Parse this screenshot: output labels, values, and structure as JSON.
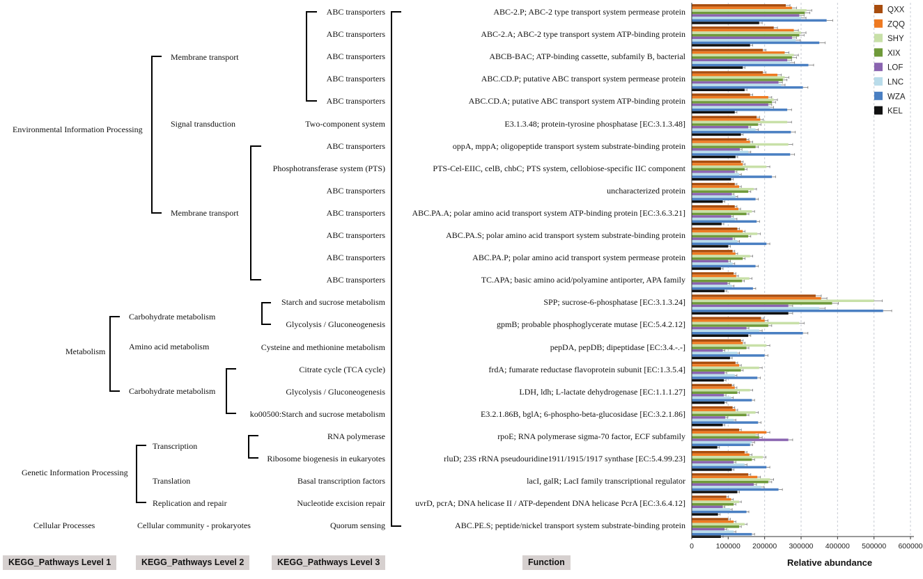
{
  "headers": {
    "level1": "KEGG_Pathways Level 1",
    "level2": "KEGG_Pathways Level 2",
    "level3": "KEGG_Pathways Level 3",
    "function": "Function"
  },
  "level1": [
    "Environmental Information Processing",
    "Metabolism",
    "Genetic Information Processing",
    "Cellular Processes"
  ],
  "level2": [
    "Membrane transport",
    "Signal transduction",
    "Membrane transport",
    "Carbohydrate metabolism",
    "Amino acid metabolism",
    "Carbohydrate metabolism",
    "Transcription",
    "Translation",
    "Replication and repair",
    "Cellular community - prokaryotes"
  ],
  "colors": {
    "QXX": "#a84d0e",
    "ZQQ": "#ee7a22",
    "SHY": "#c8e0a8",
    "XIX": "#6f9a3a",
    "LOF": "#8a64b0",
    "LNC": "#b9dcea",
    "WZA": "#4a7fc2",
    "KEL": "#111111",
    "bracket": "#000000",
    "header_bg": "#d6d0cf"
  },
  "chart_data": {
    "type": "bar",
    "orientation": "horizontal",
    "xlabel": "Relative abundance",
    "xlim": [
      0,
      600000
    ],
    "xticks": [
      "0",
      "100000",
      "200000",
      "300000",
      "400000",
      "500000",
      "600000"
    ],
    "legend": [
      "QXX",
      "ZQQ",
      "SHY",
      "XIX",
      "LOF",
      "LNC",
      "WZA",
      "KEL"
    ],
    "legend_position": "top-right",
    "rows": [
      {
        "level3": "ABC transporters",
        "function": "ABC-2.P; ABC-2 type transport system permease protein",
        "values": [
          258000,
          275000,
          315000,
          310000,
          295000,
          300000,
          370000,
          185000
        ]
      },
      {
        "level3": "ABC transporters",
        "function": "ABC-2.A; ABC-2 type transport system ATP-binding protein",
        "values": [
          225000,
          280000,
          300000,
          295000,
          275000,
          285000,
          350000,
          160000
        ]
      },
      {
        "level3": "ABC transporters",
        "function": "ABCB-BAC; ATP-binding cassette, subfamily B, bacterial",
        "values": [
          195000,
          255000,
          280000,
          275000,
          262000,
          270000,
          320000,
          140000
        ]
      },
      {
        "level3": "ABC transporters",
        "function": "ABC.CD.P; putative ABC transport system permease protein",
        "values": [
          195000,
          235000,
          255000,
          250000,
          238000,
          245000,
          305000,
          145000
        ]
      },
      {
        "level3": "ABC transporters",
        "function": "ABC.CD.A; putative ABC transport system ATP-binding protein",
        "values": [
          160000,
          210000,
          225000,
          220000,
          210000,
          215000,
          262000,
          118000
        ]
      },
      {
        "level3": "Two-component system",
        "function": "E3.1.3.48; protein-tyrosine phosphatase [EC:3.1.3.48]",
        "values": [
          178000,
          188000,
          262000,
          182000,
          155000,
          175000,
          272000,
          135000
        ]
      },
      {
        "level3": "ABC transporters",
        "function": "oppA, mppA; oligopeptide transport system substrate-binding protein",
        "values": [
          150000,
          160000,
          265000,
          175000,
          132000,
          155000,
          270000,
          120000
        ]
      },
      {
        "level3": "Phosphotransferase system (PTS)",
        "function": "PTS-Cel-EIIC, celB, chbC; PTS system, cellobiose-specific IIC component",
        "values": [
          135000,
          140000,
          205000,
          145000,
          118000,
          130000,
          220000,
          108000
        ]
      },
      {
        "level3": "ABC transporters",
        "function": "uncharacterized protein",
        "values": [
          118000,
          130000,
          170000,
          155000,
          110000,
          120000,
          175000,
          85000
        ]
      },
      {
        "level3": "ABC transporters",
        "function": "ABC.PA.A; polar amino acid transport system ATP-binding protein [EC:3.6.3.21]",
        "values": [
          118000,
          128000,
          165000,
          150000,
          108000,
          118000,
          178000,
          82000
        ]
      },
      {
        "level3": "ABC transporters",
        "function": "ABC.PA.S; polar amino acid transport system substrate-binding protein",
        "values": [
          125000,
          140000,
          180000,
          155000,
          112000,
          125000,
          205000,
          100000
        ]
      },
      {
        "level3": "ABC transporters",
        "function": "ABC.PA.P; polar amino acid transport system permease protein",
        "values": [
          112000,
          120000,
          160000,
          140000,
          100000,
          112000,
          175000,
          80000
        ]
      },
      {
        "level3": "ABC transporters",
        "function": "TC.APA; basic amino acid/polyamine antiporter, APA family",
        "values": [
          115000,
          122000,
          158000,
          138000,
          98000,
          110000,
          168000,
          90000
        ]
      },
      {
        "level3": "Starch and sucrose metabolism",
        "function": "SPP; sucrose-6-phosphatase [EC:3.1.3.24]",
        "values": [
          340000,
          355000,
          500000,
          385000,
          265000,
          350000,
          525000,
          265000
        ]
      },
      {
        "level3": "Glycolysis / Gluconeogenesis",
        "function": "gpmB; probable phosphoglycerate mutase [EC:5.4.2.12]",
        "values": [
          190000,
          200000,
          295000,
          210000,
          150000,
          185000,
          305000,
          155000
        ]
      },
      {
        "level3": "Cysteine and methionine metabolism",
        "function": "pepDA, pepDB; dipeptidase [EC:3.4.-.-]",
        "values": [
          135000,
          140000,
          205000,
          150000,
          85000,
          125000,
          200000,
          105000
        ]
      },
      {
        "level3": "Citrate cycle (TCA cycle)",
        "function": "frdA; fumarate reductase flavoprotein subunit [EC:1.3.5.4]",
        "values": [
          120000,
          130000,
          185000,
          135000,
          90000,
          118000,
          180000,
          88000
        ]
      },
      {
        "level3": "Glycolysis / Gluconeogenesis",
        "function": "LDH, ldh; L-lactate dehydrogenase [EC:1.1.1.27]",
        "values": [
          110000,
          118000,
          160000,
          125000,
          88000,
          108000,
          165000,
          90000
        ]
      },
      {
        "level3": "ko00500:Starch and sucrose metabolism",
        "function": "E3.2.1.86B, bglA; 6-phospho-beta-glucosidase [EC:3.2.1.86]",
        "values": [
          112000,
          120000,
          175000,
          150000,
          92000,
          115000,
          182000,
          85000
        ]
      },
      {
        "level3": "RNA polymerase",
        "function": "rpoE; RNA polymerase sigma-70 factor, ECF subfamily",
        "values": [
          130000,
          205000,
          175000,
          185000,
          265000,
          165000,
          160000,
          70000
        ]
      },
      {
        "level3": "Ribosome biogenesis in eukaryotes",
        "function": "rluD; 23S rRNA pseudouridine1911/1915/1917 synthase [EC:5.4.99.23]",
        "values": [
          145000,
          158000,
          195000,
          165000,
          115000,
          145000,
          205000,
          110000
        ]
      },
      {
        "level3": "Basal transcription factors",
        "function": "lacI, galR; LacI family transcriptional regulator",
        "values": [
          155000,
          180000,
          215000,
          210000,
          170000,
          190000,
          238000,
          125000
        ]
      },
      {
        "level3": "Nucleotide excision repair",
        "function": "uvrD, pcrA; DNA helicase II / ATP-dependent DNA helicase PcrA [EC:3.6.4.12]",
        "values": [
          95000,
          108000,
          130000,
          115000,
          85000,
          105000,
          150000,
          72000
        ]
      },
      {
        "level3": "Quorum sensing",
        "function": "ABC.PE.S; peptide/nickel transport system substrate-binding protein",
        "values": [
          100000,
          115000,
          145000,
          130000,
          90000,
          115000,
          165000,
          80000
        ]
      }
    ]
  }
}
